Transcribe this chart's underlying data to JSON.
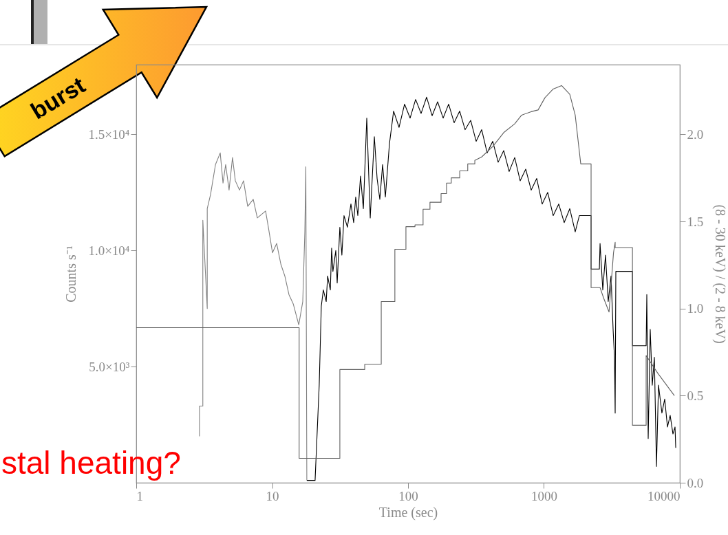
{
  "chart_data": {
    "type": "line",
    "xlabel": "Time (sec)",
    "ylabel": "Counts s⁻¹",
    "y2label": "(8 - 30 keV) / (2 - 8 keV)",
    "log": "x",
    "xlim": [
      1,
      10000
    ],
    "xticks": [
      1,
      10,
      100,
      1000,
      10000
    ],
    "ylim": [
      0,
      18000
    ],
    "yticks": [
      {
        "value": 5000,
        "label": "5.0×10³"
      },
      {
        "value": 10000,
        "label": "1.0×10⁴"
      },
      {
        "value": 15000,
        "label": "1.5×10⁴"
      }
    ],
    "y2lim": [
      0,
      2.4
    ],
    "y2ticks": [
      {
        "value": 0,
        "label": "0.0"
      },
      {
        "value": 0.5,
        "label": "0.5"
      },
      {
        "value": 1,
        "label": "1.0"
      },
      {
        "value": 1.5,
        "label": "1.5"
      },
      {
        "value": 2,
        "label": "2.0"
      }
    ],
    "annotations": [
      "burst",
      "stal heating?"
    ],
    "series": [
      {
        "color": "#808080",
        "x": [
          2.92,
          2.92,
          3.09,
          3.09,
          3.33,
          3.33,
          3.52,
          3.83,
          4.15,
          4.35,
          4.55,
          4.82,
          5.11,
          5.36,
          5.75,
          6.16,
          6.61,
          7.26,
          7.78,
          8.95,
          9.38,
          10.06,
          10.8,
          11.6,
          12.4,
          13.3,
          14.3,
          15.7,
          16.8,
          17.4,
          17.7,
          18.0
        ],
        "values": [
          2000,
          3300,
          3300,
          11300,
          7500,
          11800,
          12400,
          13700,
          14200,
          12900,
          13700,
          12600,
          14000,
          13000,
          12600,
          13000,
          11900,
          12200,
          11400,
          11700,
          11000,
          9900,
          10300,
          9400,
          8900,
          8100,
          7700,
          6800,
          7800,
          10800,
          13600,
          100
        ]
      },
      {
        "color": "#000000",
        "x": [
          18.0,
          20.7,
          22.2,
          23.0,
          23.8,
          25.0,
          25.6,
          26.8,
          27.4,
          28.0,
          29.4,
          30.1,
          31.5,
          32.6,
          33.8,
          35.8,
          38.0,
          39.8,
          41.2,
          42.7,
          44.7,
          46.9,
          49.7,
          52.7,
          56.5,
          59.2,
          62.0,
          65.0,
          68.1,
          73.0,
          78.3,
          85.9,
          94.3,
          103.6,
          113.7,
          124.8,
          137.0,
          150.4,
          165.1,
          181.2,
          199.0,
          218.3,
          239.9,
          263.0,
          289.1,
          317.0,
          348.3,
          382.1,
          419.8,
          460.3,
          505.8,
          554.6,
          609.5,
          668.3,
          734.5,
          805.4,
          885.1,
          970.5,
          1066,
          1170,
          1285,
          1409,
          1549,
          1699,
          1822,
          1866,
          2223,
          2223,
          2558,
          2588,
          2710,
          2838,
          2972,
          3117,
          3228,
          3305,
          3343,
          3382,
          4480,
          4480,
          5650,
          5715,
          5850,
          6055,
          6268,
          6495,
          6730,
          6966,
          7380,
          7740,
          8110,
          8490,
          8900,
          9220,
          9330
        ],
        "values": [
          100,
          100,
          4200,
          7600,
          8300,
          7800,
          8900,
          8300,
          10100,
          9100,
          10000,
          8600,
          11000,
          9800,
          11500,
          11000,
          12000,
          11200,
          12300,
          11500,
          13200,
          11800,
          15700,
          11400,
          14900,
          13100,
          12200,
          13700,
          12300,
          14600,
          16000,
          15300,
          16300,
          15700,
          16500,
          15900,
          16600,
          15800,
          16400,
          15700,
          16300,
          15500,
          16000,
          15200,
          15600,
          14700,
          15200,
          14200,
          14700,
          13800,
          14300,
          13400,
          14000,
          13000,
          13500,
          12600,
          13100,
          12000,
          12500,
          11500,
          12000,
          11200,
          11800,
          10800,
          11500,
          11500,
          11500,
          9200,
          9200,
          10300,
          8300,
          9800,
          7800,
          8900,
          6600,
          5400,
          3000,
          9100,
          9100,
          5900,
          5900,
          8100,
          1900,
          6600,
          4200,
          5400,
          700,
          4200,
          3000,
          3600,
          2400,
          2900,
          2100,
          2400,
          1500
        ]
      },
      {
        "color": "#606060",
        "axis": "y2",
        "x": [
          1,
          15.8,
          15.8,
          31.5,
          31.5,
          48,
          48,
          63.5,
          63.5,
          80,
          80,
          96.5,
          96.5,
          112.5,
          112.5,
          129,
          129,
          145,
          145,
          175,
          175,
          192,
          192,
          208,
          208,
          240,
          240,
          275,
          275,
          310,
          310,
          348,
          420,
          506,
          609,
          685,
          805,
          906,
          1017,
          1170,
          1348,
          1549,
          1699,
          1866,
          2223,
          2223,
          2588,
          2750,
          3014,
          3250,
          3343,
          3343,
          4480,
          4480,
          5650,
          5650,
          6860,
          9120
        ],
        "values": [
          0.89,
          0.89,
          0.14,
          0.14,
          0.65,
          0.65,
          0.68,
          0.68,
          1.04,
          1.04,
          1.34,
          1.34,
          1.47,
          1.47,
          1.48,
          1.48,
          1.57,
          1.57,
          1.61,
          1.61,
          1.66,
          1.66,
          1.72,
          1.72,
          1.75,
          1.75,
          1.79,
          1.79,
          1.83,
          1.83,
          1.85,
          1.87,
          1.93,
          2.01,
          2.06,
          2.11,
          2.13,
          2.14,
          2.21,
          2.26,
          2.28,
          2.23,
          2.11,
          1.83,
          1.83,
          1.12,
          1.12,
          1.06,
          0.98,
          1.32,
          1.38,
          1.35,
          1.35,
          0.33,
          0.33,
          0.73,
          0.63,
          0.5
        ]
      }
    ]
  }
}
